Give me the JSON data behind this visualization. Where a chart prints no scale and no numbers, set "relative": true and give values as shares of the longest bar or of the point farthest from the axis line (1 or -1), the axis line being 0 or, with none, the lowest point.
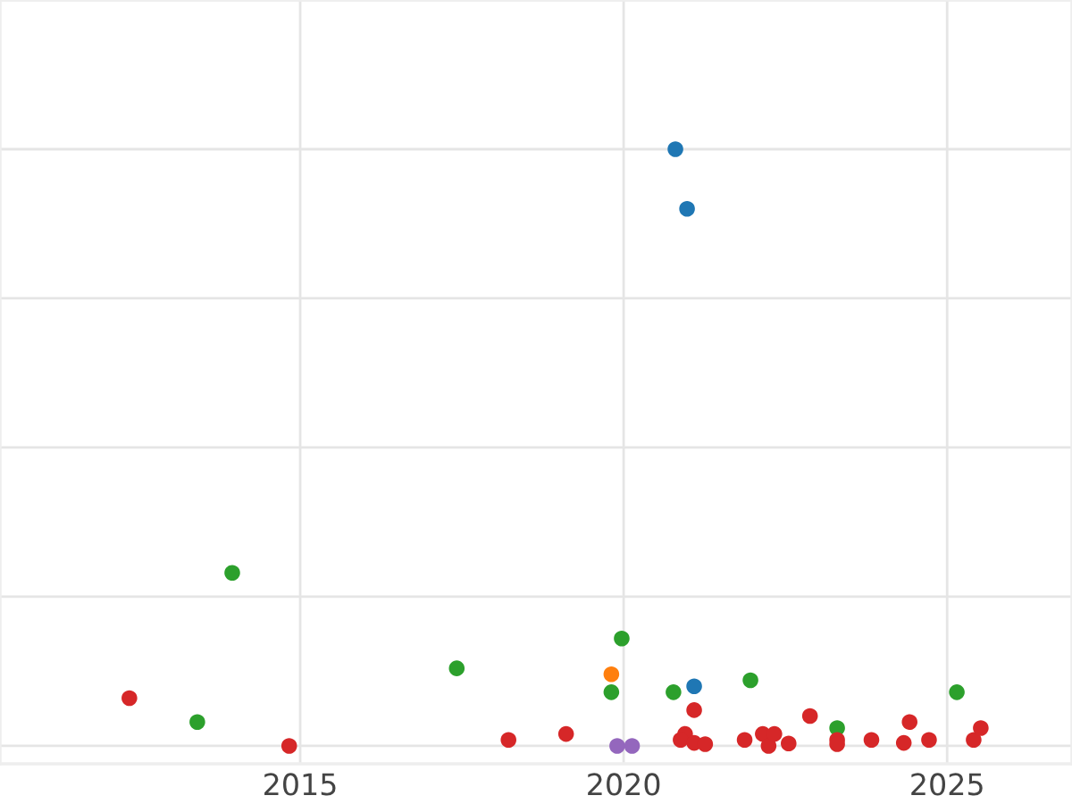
{
  "chart_data": {
    "type": "scatter",
    "relative": true,
    "grid": true,
    "legend": false,
    "marker": "circle",
    "tick_labels": "x",
    "xlim": [
      2010.36,
      2026.93
    ],
    "xticks": [
      2015,
      2020,
      2025
    ],
    "series": [
      {
        "color": "#1f77b4",
        "x": [
          2020.8,
          2020.98,
          2021.09
        ],
        "values": [
          1.0,
          0.9,
          0.1
        ]
      },
      {
        "color": "#2ca02c",
        "x": [
          2013.95,
          2013.41,
          2017.42,
          2019.97,
          2019.81,
          2020.77,
          2021.96,
          2023.3,
          2025.15
        ],
        "values": [
          0.29,
          0.04,
          0.13,
          0.18,
          0.09,
          0.09,
          0.11,
          0.03,
          0.09
        ]
      },
      {
        "color": "#d62728",
        "x": [
          2012.36,
          2014.83,
          2018.22,
          2019.11,
          2021.09,
          2020.95,
          2020.88,
          2021.09,
          2021.26,
          2021.87,
          2022.15,
          2022.24,
          2022.33,
          2022.55,
          2022.88,
          2023.3,
          2023.3,
          2023.83,
          2024.33,
          2024.42,
          2024.72,
          2025.41,
          2025.52
        ],
        "values": [
          0.08,
          0.0,
          0.01,
          0.02,
          0.06,
          0.02,
          0.01,
          0.005,
          0.003,
          0.01,
          0.02,
          0.0,
          0.02,
          0.004,
          0.05,
          0.01,
          0.003,
          0.01,
          0.005,
          0.04,
          0.01,
          0.01,
          0.03
        ]
      },
      {
        "color": "#ff7f0e",
        "x": [
          2019.81
        ],
        "values": [
          0.12
        ]
      },
      {
        "color": "#9467bd",
        "x": [
          2019.9,
          2020.13
        ],
        "values": [
          0.0,
          0.0
        ]
      }
    ]
  }
}
